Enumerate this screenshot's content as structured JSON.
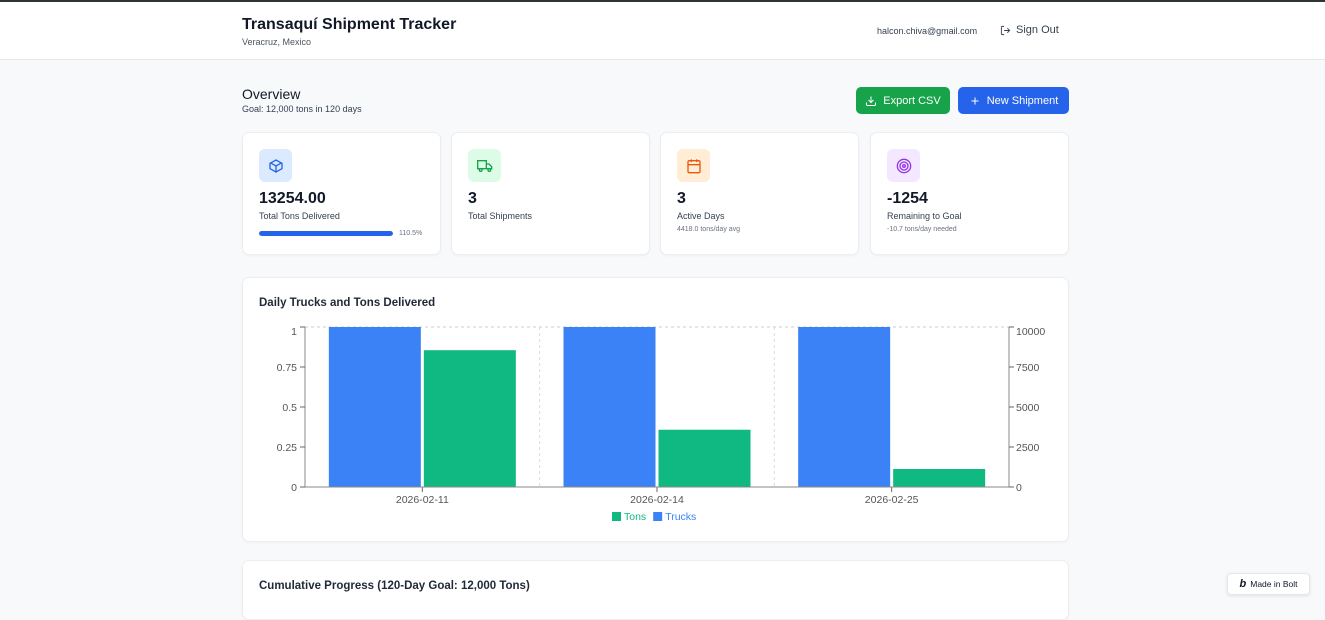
{
  "header": {
    "title": "Transaquí Shipment Tracker",
    "location": "Veracruz, Mexico",
    "email": "halcon.chiva@gmail.com",
    "sign_out": "Sign Out"
  },
  "overview": {
    "title": "Overview",
    "goal": "Goal: 12,000 tons in 120 days",
    "export_label": "Export CSV",
    "new_label": "New Shipment"
  },
  "stats": [
    {
      "value": "13254.00",
      "label": "Total Tons Delivered",
      "progress_percent": 110.5,
      "progress_label": "110.5%",
      "icon": "package-icon"
    },
    {
      "value": "3",
      "label": "Total Shipments",
      "icon": "truck-icon"
    },
    {
      "value": "3",
      "label": "Active Days",
      "note": "4418.0 tons/day avg",
      "icon": "calendar-icon"
    },
    {
      "value": "-1254",
      "label": "Remaining to Goal",
      "note": "-10.7 tons/day needed",
      "icon": "target-icon"
    }
  ],
  "colors": {
    "trucks": "#3b82f6",
    "tons": "#10b981",
    "primary": "#2563eb",
    "success": "#16a34a"
  },
  "chart_data": {
    "type": "bar",
    "title": "Daily Trucks and Tons Delivered",
    "categories": [
      "2026-02-11",
      "2026-02-14",
      "2026-02-25"
    ],
    "series": [
      {
        "name": "Trucks",
        "axis": "left",
        "values": [
          1,
          1,
          1
        ]
      },
      {
        "name": "Tons",
        "axis": "right",
        "values": [
          8550,
          3580,
          1124
        ]
      }
    ],
    "left_ylim": [
      0,
      1
    ],
    "left_ticks": [
      "0",
      "0.25",
      "0.5",
      "0.75",
      "1"
    ],
    "right_ylim": [
      0,
      10000
    ],
    "right_ticks": [
      "0",
      "2500",
      "5000",
      "7500",
      "10000"
    ],
    "legend": [
      "Tons",
      "Trucks"
    ],
    "legend_position": "bottom",
    "grid": true
  },
  "chart2": {
    "title": "Cumulative Progress (120-Day Goal: 12,000 Tons)"
  },
  "badge": "Made in Bolt"
}
